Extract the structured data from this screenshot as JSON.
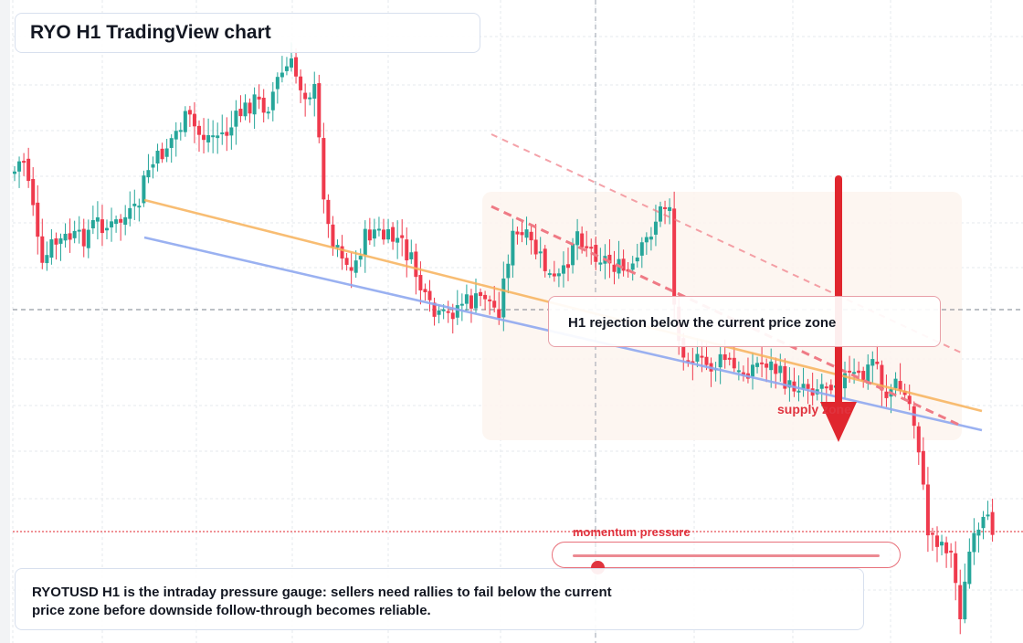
{
  "header": {
    "title": "RYO H1 TradingView chart"
  },
  "annotation": {
    "text": "H1 rejection below the current price zone"
  },
  "zone": {
    "label": "supply zone"
  },
  "gauge": {
    "label": "momentum pressure",
    "level": 0.08
  },
  "caption": {
    "text": "RYOTUSD H1 is the intraday pressure gauge: sellers need rallies to fail below the current price zone before downside follow-through becomes reliable."
  },
  "colors": {
    "bull": "#26a69a",
    "bear": "#ef3a4d",
    "trend_orange": "#f7b15a",
    "trend_blue": "#8fa8ef",
    "bear_channel": "#ef7a85",
    "arrow": "#e0262e",
    "zone_fill": "#fdf4ef"
  },
  "chart_data": {
    "type": "candlestick",
    "title": "RYO H1 TradingView chart",
    "y_axis": "price (no scale labels shown)",
    "trend": "down",
    "candles_approx": 150
  }
}
